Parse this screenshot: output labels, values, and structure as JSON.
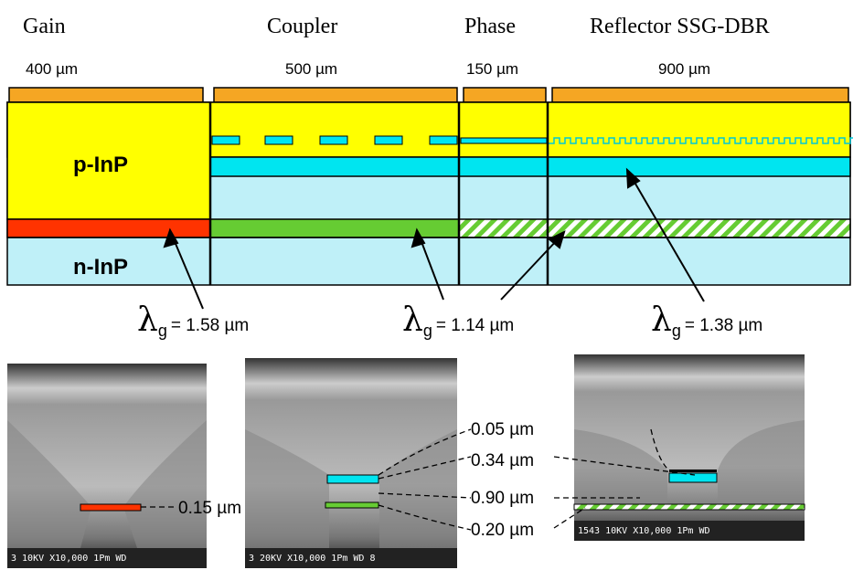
{
  "sections": [
    {
      "title": "Gain",
      "length": "400 µm"
    },
    {
      "title": "Coupler",
      "length": "500 µm"
    },
    {
      "title": "Phase",
      "length": "150 µm"
    },
    {
      "title": "Reflector SSG-DBR",
      "length": "900 µm"
    }
  ],
  "layers": {
    "p": "p-InP",
    "n": "n-InP"
  },
  "bandgaps": [
    {
      "symbol": "λ",
      "sub": "g",
      "value": "= 1.58 µm"
    },
    {
      "symbol": "λ",
      "sub": "g",
      "value": "= 1.14 µm"
    },
    {
      "symbol": "λ",
      "sub": "g",
      "value": "= 1.38 µm"
    }
  ],
  "sem": [
    {
      "caption": "3  10KV  X10,000   1Pm WD"
    },
    {
      "caption": "3  20KV  X10,000    1Pm WD 8"
    },
    {
      "caption": "1543  10KV  X10,000    1Pm WD"
    }
  ],
  "thicknesses": [
    "0.15 µm",
    "0.05 µm",
    "0.34 µm",
    "0.90 µm",
    "0.20 µm"
  ]
}
